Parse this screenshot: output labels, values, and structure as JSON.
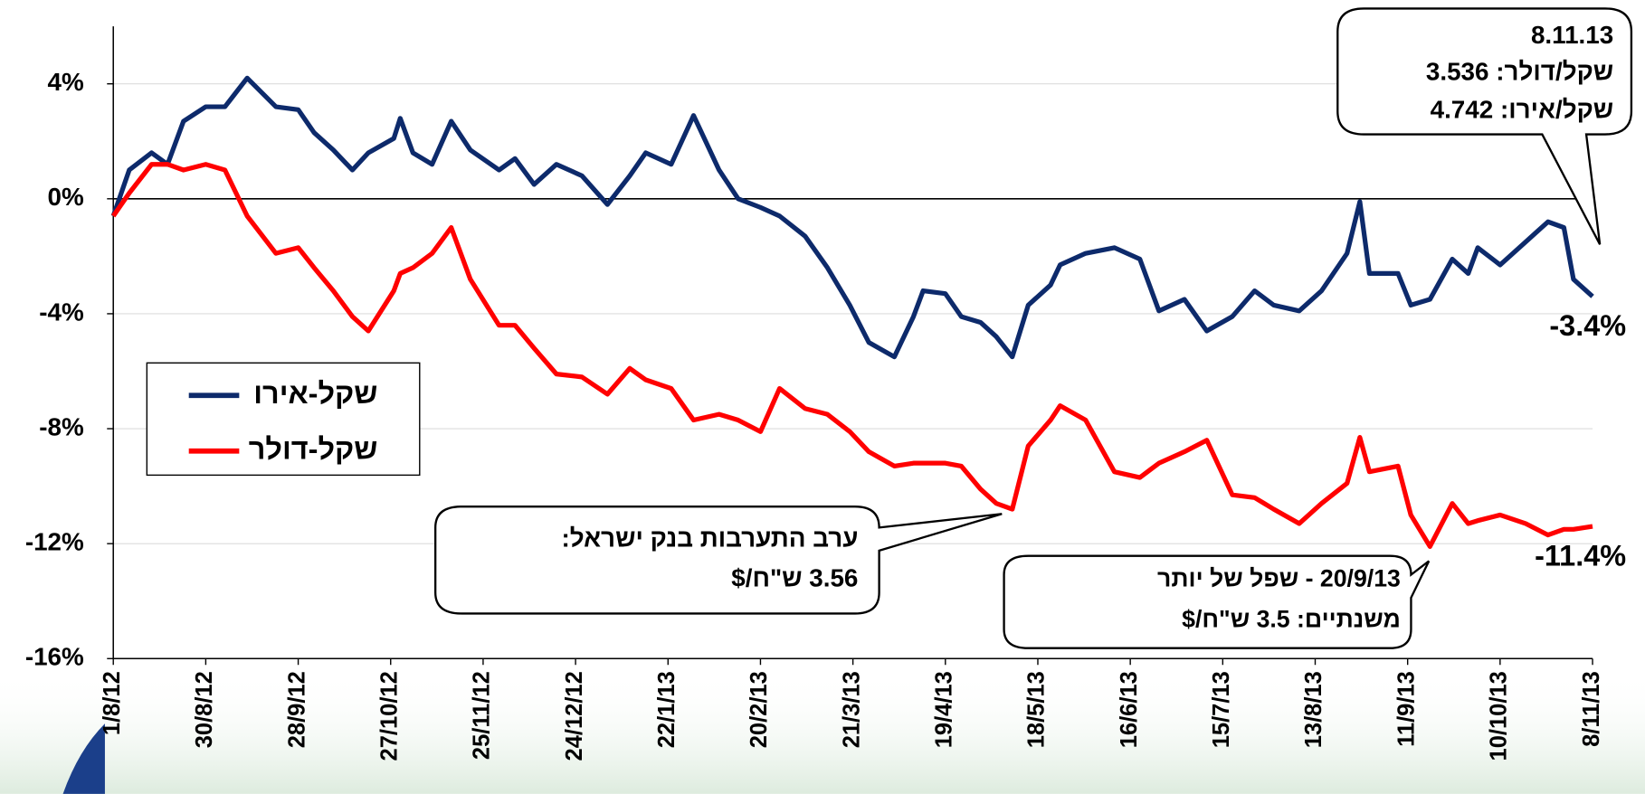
{
  "chart_data": {
    "type": "line",
    "x": [
      "1/8/12",
      "6/8/12",
      "13/8/12",
      "18/8/12",
      "23/8/12",
      "30/8/12",
      "5/9/12",
      "12/9/12",
      "21/9/12",
      "28/9/12",
      "3/10/12",
      "9/10/12",
      "15/10/12",
      "20/10/12",
      "28/10/12",
      "30/10/12",
      "3/11/12",
      "9/11/12",
      "15/11/12",
      "21/11/12",
      "30/11/12",
      "5/12/12",
      "11/12/12",
      "18/12/12",
      "26/12/12",
      "3/1/13",
      "10/1/13",
      "15/1/13",
      "23/1/13",
      "30/1/13",
      "7/2/13",
      "13/2/13",
      "20/2/13",
      "26/2/13",
      "6/3/13",
      "13/3/13",
      "20/3/13",
      "26/3/13",
      "3/4/13",
      "9/4/13",
      "12/4/13",
      "19/4/13",
      "24/4/13",
      "30/4/13",
      "5/5/13",
      "10/5/13",
      "15/5/13",
      "22/5/13",
      "25/5/13",
      "2/6/13",
      "11/6/13",
      "19/6/13",
      "25/6/13",
      "3/7/13",
      "10/7/13",
      "18/7/13",
      "25/7/13",
      "31/7/13",
      "8/8/13",
      "15/8/13",
      "23/8/13",
      "27/8/13",
      "30/8/13",
      "8/9/13",
      "12/9/13",
      "18/9/13",
      "25/9/13",
      "30/9/13",
      "3/10/13",
      "10/10/13",
      "18/10/13",
      "25/10/13",
      "30/10/13",
      "2/11/13",
      "8/11/13"
    ],
    "series": [
      {
        "name": "שקל-אירו",
        "color": "#0d2a6b",
        "end_label": "-3.4%",
        "values": [
          -0.6,
          1.0,
          1.6,
          1.2,
          2.7,
          3.2,
          3.2,
          4.2,
          3.2,
          3.1,
          2.3,
          1.7,
          1.0,
          1.6,
          2.1,
          2.8,
          1.6,
          1.2,
          2.7,
          1.7,
          1.0,
          1.4,
          0.5,
          1.2,
          0.8,
          -0.2,
          0.8,
          1.6,
          1.2,
          2.9,
          1.0,
          0.0,
          -0.3,
          -0.6,
          -1.3,
          -2.4,
          -3.7,
          -5.0,
          -5.5,
          -4.1,
          -3.2,
          -3.3,
          -4.1,
          -4.3,
          -4.8,
          -5.5,
          -3.7,
          -3.0,
          -2.3,
          -1.9,
          -1.7,
          -2.1,
          -3.9,
          -3.5,
          -4.6,
          -4.1,
          -3.2,
          -3.7,
          -3.9,
          -3.2,
          -1.9,
          -0.1,
          -2.6,
          -2.6,
          -3.7,
          -3.5,
          -2.1,
          -2.6,
          -1.7,
          -2.3,
          -1.5,
          -0.8,
          -1.0,
          -2.8,
          -3.4
        ]
      },
      {
        "name": "שקל-דולר",
        "color": "#ff0000",
        "end_label": "-11.4%",
        "values": [
          -0.6,
          0.2,
          1.2,
          1.2,
          1.0,
          1.2,
          1.0,
          -0.6,
          -1.9,
          -1.7,
          -2.4,
          -3.2,
          -4.1,
          -4.6,
          -3.2,
          -2.6,
          -2.4,
          -1.9,
          -1.0,
          -2.8,
          -4.4,
          -4.4,
          -5.2,
          -6.1,
          -6.2,
          -6.8,
          -5.9,
          -6.3,
          -6.6,
          -7.7,
          -7.5,
          -7.7,
          -8.1,
          -6.6,
          -7.3,
          -7.5,
          -8.1,
          -8.8,
          -9.3,
          -9.2,
          -9.2,
          -9.2,
          -9.3,
          -10.1,
          -10.6,
          -10.8,
          -8.6,
          -7.7,
          -7.2,
          -7.7,
          -9.5,
          -9.7,
          -9.2,
          -8.8,
          -8.4,
          -10.3,
          -10.4,
          -10.8,
          -11.3,
          -10.6,
          -9.9,
          -8.3,
          -9.5,
          -9.3,
          -11.0,
          -12.1,
          -10.6,
          -11.3,
          -11.2,
          -11.0,
          -11.3,
          -11.7,
          -11.5,
          -11.5,
          -11.4
        ]
      }
    ],
    "xlim": [
      "1/8/12",
      "8/11/13"
    ],
    "xticks": [
      "1/8/12",
      "30/8/12",
      "28/9/12",
      "27/10/12",
      "25/11/12",
      "24/12/12",
      "22/1/13",
      "20/2/13",
      "21/3/13",
      "19/4/13",
      "18/5/13",
      "16/6/13",
      "15/7/13",
      "13/8/13",
      "11/9/13",
      "10/10/13",
      "8/11/13"
    ],
    "ylim": [
      -16,
      6
    ],
    "yticks": [
      {
        "value": -16,
        "label": "-16%"
      },
      {
        "value": -12,
        "label": "-12%"
      },
      {
        "value": -8,
        "label": "-8%"
      },
      {
        "value": -4,
        "label": "-4%"
      },
      {
        "value": 0,
        "label": "0%"
      },
      {
        "value": 4,
        "label": "4%"
      }
    ],
    "grid": true,
    "annotations": [
      {
        "lines": [
          "8.11.13",
          "שקל/דולר: 3.536",
          "שקל/אירו: 4.742"
        ]
      },
      {
        "lines": [
          "ערב התערבות בנק ישראל:",
          "3.56 ש\"ח/$"
        ]
      },
      {
        "lines": [
          "20/9/13 -  שפל של יותר",
          "משנתיים: 3.5 ש\"ח/$"
        ]
      }
    ]
  }
}
